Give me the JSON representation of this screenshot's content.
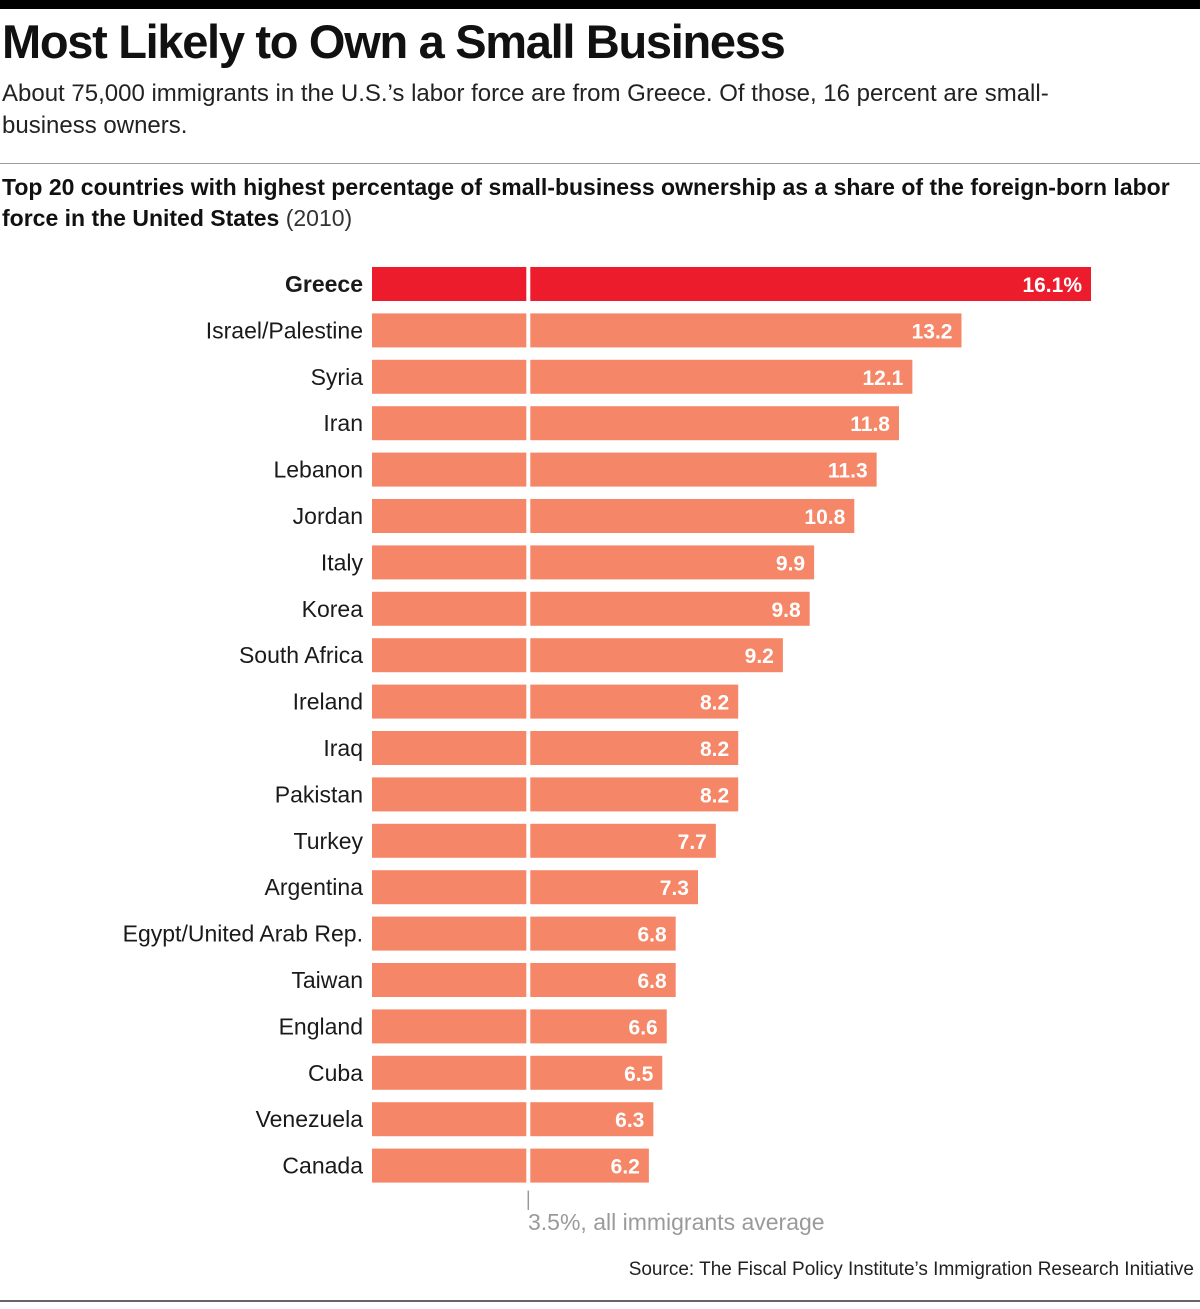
{
  "header": {
    "title": "Most Likely to Own a Small Business",
    "subtitle": "About 75,000 immigrants in the U.S.’s labor force are from Greece. Of those, 16 percent are small-business owners."
  },
  "chart_data": {
    "type": "bar",
    "orientation": "horizontal",
    "title": "Top 20 countries with highest percentage of small-business ownership as a share of the foreign-born labor force in the United States",
    "title_suffix": "(2010)",
    "unit": "%",
    "categories": [
      "Greece",
      "Israel/Palestine",
      "Syria",
      "Iran",
      "Lebanon",
      "Jordan",
      "Italy",
      "Korea",
      "South Africa",
      "Ireland",
      "Iraq",
      "Pakistan",
      "Turkey",
      "Argentina",
      "Egypt/United Arab Rep.",
      "Taiwan",
      "England",
      "Cuba",
      "Venezuela",
      "Canada"
    ],
    "values": [
      16.1,
      13.2,
      12.1,
      11.8,
      11.3,
      10.8,
      9.9,
      9.8,
      9.2,
      8.2,
      8.2,
      8.2,
      7.7,
      7.3,
      6.8,
      6.8,
      6.6,
      6.5,
      6.3,
      6.2
    ],
    "value_labels": [
      "16.1%",
      "13.2",
      "12.1",
      "11.8",
      "11.3",
      "10.8",
      "9.9",
      "9.8",
      "9.2",
      "8.2",
      "8.2",
      "8.2",
      "7.7",
      "7.3",
      "6.8",
      "6.8",
      "6.6",
      "6.5",
      "6.3",
      "6.2"
    ],
    "highlight": "Greece",
    "reference_line": {
      "value": 3.5,
      "label": "3.5%, all immigrants average"
    },
    "xlim": [
      0,
      16.1
    ],
    "colors": {
      "highlight": "#ec1c2c",
      "bar": "#f58667",
      "reference_line": "#ffffff",
      "reference_tick": "#9a9a9a"
    },
    "grid": false,
    "legend": "none"
  },
  "footer": {
    "source": "Source: The Fiscal Policy Institute’s Immigration Research Initiative"
  }
}
